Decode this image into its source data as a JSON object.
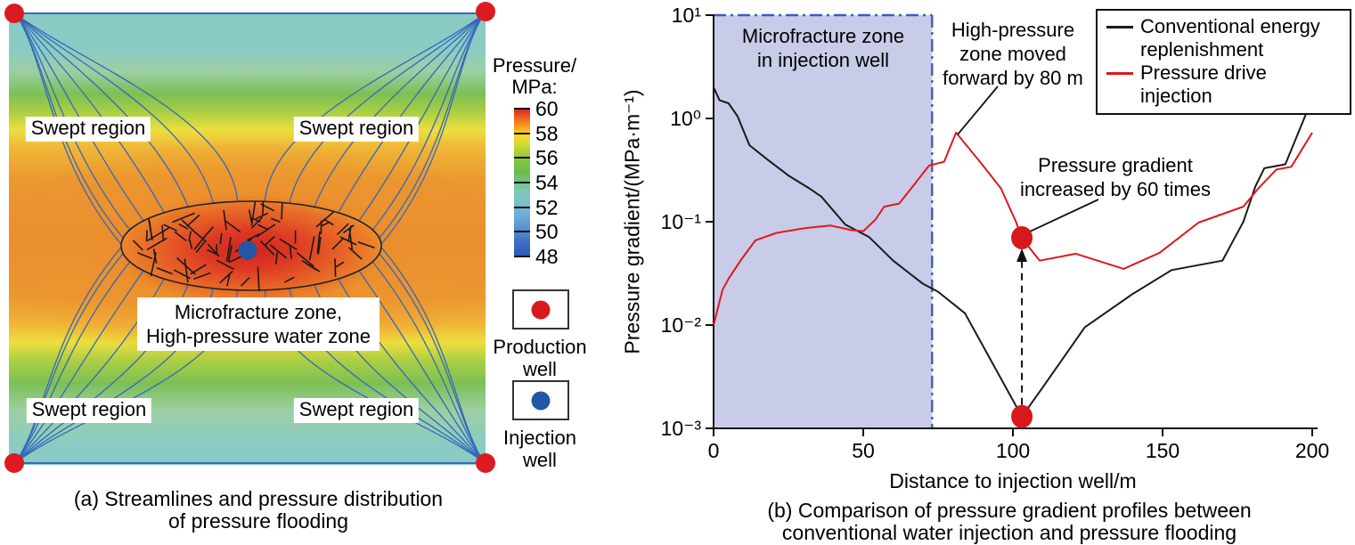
{
  "panel_a": {
    "caption1": "(a) Streamlines and pressure distribution",
    "caption2": "of pressure flooding",
    "region_labels": [
      "Swept region",
      "Swept region",
      "Swept region",
      "Swept region"
    ],
    "center_label1": "Microfracture zone,",
    "center_label2": "High-pressure water zone",
    "colorbar": {
      "title1": "Pressure/",
      "title2": "MPa:",
      "ticks": [
        "60",
        "58",
        "56",
        "54",
        "52",
        "50",
        "48"
      ]
    },
    "wells": [
      {
        "line1": "Production",
        "line2": "well",
        "color": "#d7191c"
      },
      {
        "line1": "Injection",
        "line2": "well",
        "color": "#2356a7"
      }
    ]
  },
  "panel_b": {
    "caption1": "(b) Comparison of pressure gradient profiles between",
    "caption2": "conventional water injection and pressure flooding",
    "xlabel": "Distance to injection well/m",
    "ylabel": "Pressure gradient/(MPa·m⁻¹)",
    "zone_label1": "Microfracture zone",
    "zone_label2": "in injection well",
    "ann_moved1": "High-pressure",
    "ann_moved2": "zone moved",
    "ann_moved3": "forward by 80 m",
    "ann_grad1": "Pressure gradient",
    "ann_grad2": "increased by 60 times"
  },
  "chart_data": {
    "type": "line",
    "x_axis": {
      "label": "Distance to injection well/m",
      "range": [
        0,
        200
      ],
      "ticks": [
        0,
        50,
        100,
        150,
        200
      ]
    },
    "y_axis": {
      "label": "Pressure gradient/(MPa·m⁻¹)",
      "scale": "log",
      "range": [
        0.001,
        10
      ],
      "tick_labels": [
        "10¹",
        "10⁰",
        "10⁻¹",
        "10⁻²",
        "10⁻³"
      ]
    },
    "grid": false,
    "legend_position": "top-right",
    "series": [
      {
        "name": "Conventional energy replenishment",
        "color": "#1a1a1a",
        "x": [
          0,
          2,
          5,
          8,
          12,
          18,
          25,
          32,
          36,
          44,
          52,
          60,
          70,
          75,
          84,
          103,
          110,
          124,
          140,
          153,
          170,
          177,
          181,
          184,
          191,
          200
        ],
        "y": [
          2.0,
          1.5,
          1.4,
          1.05,
          0.55,
          0.4,
          0.28,
          0.21,
          0.175,
          0.094,
          0.071,
          0.042,
          0.025,
          0.021,
          0.013,
          0.0013,
          0.0025,
          0.0095,
          0.02,
          0.034,
          0.042,
          0.1,
          0.22,
          0.33,
          0.36,
          1.55
        ]
      },
      {
        "name": "Pressure drive injection",
        "color": "#e0181c",
        "x": [
          0,
          3,
          5,
          9,
          14,
          21,
          31,
          39,
          46,
          50,
          54,
          57,
          62,
          66,
          72,
          77,
          81,
          90,
          96,
          101,
          103,
          109,
          121,
          137,
          149,
          162,
          177,
          182,
          188,
          193,
          200
        ],
        "y": [
          0.01,
          0.022,
          0.028,
          0.042,
          0.066,
          0.078,
          0.087,
          0.092,
          0.083,
          0.081,
          0.104,
          0.14,
          0.15,
          0.21,
          0.35,
          0.38,
          0.73,
          0.35,
          0.21,
          0.1,
          0.069,
          0.042,
          0.049,
          0.035,
          0.05,
          0.098,
          0.14,
          0.21,
          0.32,
          0.34,
          0.73
        ]
      }
    ],
    "markers": [
      {
        "x": 103,
        "y": 0.07,
        "color": "#d7191c"
      },
      {
        "x": 103,
        "y": 0.0013,
        "color": "#d7191c"
      }
    ],
    "shaded_region": {
      "x_start": 0,
      "x_end": 73,
      "label": "Microfracture zone in injection well",
      "fill": "#c9cce8",
      "border_color": "#3b5fc0"
    },
    "annotations": [
      "High-pressure zone moved forward by 80 m",
      "Pressure gradient increased by 60 times"
    ]
  }
}
